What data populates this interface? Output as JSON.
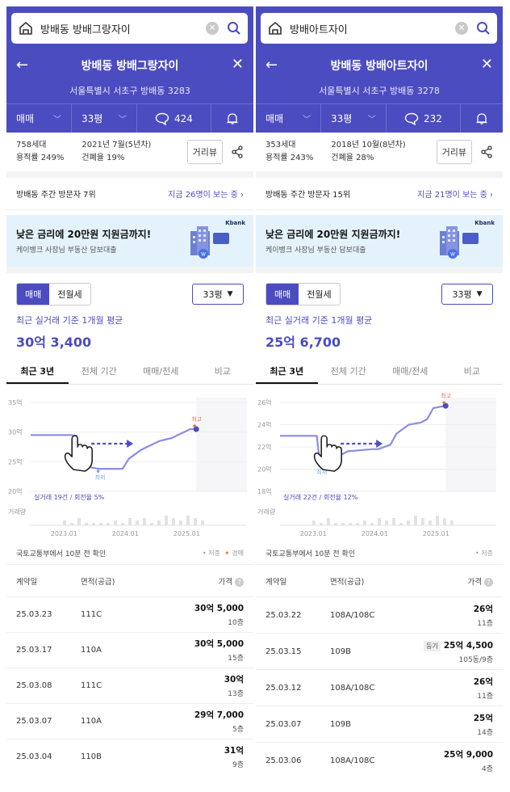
{
  "colors": {
    "brand": "#4b4cc0",
    "avg_line": "#8b8de2",
    "max_marker": "#e8704a",
    "min_marker": "#6ea7e8"
  },
  "panels": [
    {
      "search": {
        "query": "방배동 방배그랑자이"
      },
      "title": "방배동 방배그랑자이",
      "address": "서울특별시 서초구 방배동 3283",
      "tabs": {
        "trade": "매매",
        "size": "33평",
        "comments": "424"
      },
      "info": {
        "households": "758세대",
        "floor_area": "용적률 249%",
        "built": "2021년 7월(5년차)",
        "coverage": "건폐율 19%",
        "distance_btn": "거리뷰"
      },
      "visit": {
        "rank": "방배동 주간 방문자 7위",
        "now": "지금 26명이 보는 중 ›"
      },
      "banner": {
        "title": "낮은 금리에 20만원 지원금까지!",
        "sub": "케이뱅크 사장님 부동산 담보대출",
        "brand": "Kbank"
      },
      "toggle": {
        "trade": "매매",
        "rent": "전월세",
        "size": "33평"
      },
      "avg": {
        "label": "최근 실거래 기준 1개월 평균",
        "value": "30억 3,400"
      },
      "period_tabs": [
        "최근 3년",
        "전체 기간",
        "매매/전세",
        "비교"
      ],
      "chart_data": {
        "type": "line",
        "y_ticks": [
          "35억",
          "30억",
          "25억",
          "20억"
        ],
        "ylim": [
          20,
          35
        ],
        "x_ticks": [
          "2023.01",
          "2024.01",
          "2025.01"
        ],
        "xlim": [
          2022.5,
          2025.5
        ],
        "x": [
          2022.5,
          2023.15,
          2023.25,
          2023.3,
          2023.5,
          2023.6,
          2024.0,
          2024.1,
          2024.3,
          2024.5,
          2024.6,
          2024.8,
          2024.9,
          2025.0,
          2025.1,
          2025.2
        ],
        "values": [
          29.5,
          29.5,
          29.4,
          24.5,
          24.0,
          23.8,
          23.8,
          25.5,
          27.0,
          28.0,
          28.5,
          29.0,
          29.5,
          30.0,
          30.5,
          30.5
        ],
        "max_label": "최고",
        "min_label": "최저",
        "count_label": "실거래 19건 / 회전율 5%",
        "volume_label": "거래량"
      },
      "source": {
        "text": "국토교통부에서 10분 전 확인",
        "legend": [
          "저층",
          "경매"
        ]
      },
      "table": {
        "headers": [
          "계약일",
          "면적(공급)",
          "가격"
        ],
        "rows": [
          {
            "date": "25.03.23",
            "area": "111C",
            "price": "30억 5,000",
            "floor": "10층",
            "tag": ""
          },
          {
            "date": "25.03.17",
            "area": "110A",
            "price": "30억 5,000",
            "floor": "15층",
            "tag": ""
          },
          {
            "date": "25.03.08",
            "area": "111C",
            "price": "30억",
            "floor": "13층",
            "tag": ""
          },
          {
            "date": "25.03.07",
            "area": "110A",
            "price": "29억 7,000",
            "floor": "5층",
            "tag": ""
          },
          {
            "date": "25.03.04",
            "area": "110B",
            "price": "31억",
            "floor": "9층",
            "tag": ""
          }
        ]
      }
    },
    {
      "search": {
        "query": "방배아트자이"
      },
      "title": "방배동 방배아트자이",
      "address": "서울특별시 서초구 방배동 3278",
      "tabs": {
        "trade": "매매",
        "size": "33평",
        "comments": "232"
      },
      "info": {
        "households": "353세대",
        "floor_area": "용적률 243%",
        "built": "2018년 10월(8년차)",
        "coverage": "건폐율 28%",
        "distance_btn": "거리뷰"
      },
      "visit": {
        "rank": "방배동 주간 방문자 15위",
        "now": "지금 21명이 보는 중 ›"
      },
      "banner": {
        "title": "낮은 금리에 20만원 지원금까지!",
        "sub": "케이뱅크 사장님 부동산 담보대출",
        "brand": "Kbank"
      },
      "toggle": {
        "trade": "매매",
        "rent": "전월세",
        "size": "33평"
      },
      "avg": {
        "label": "최근 실거래 기준 1개월 평균",
        "value": "25억 6,700"
      },
      "period_tabs": [
        "최근 3년",
        "전체 기간",
        "매매/전세",
        "비교"
      ],
      "chart_data": {
        "type": "line",
        "y_ticks": [
          "26억",
          "24억",
          "22억",
          "20억",
          "18억"
        ],
        "ylim": [
          18,
          26
        ],
        "x_ticks": [
          "2023.01",
          "2024.01",
          "2025.01"
        ],
        "xlim": [
          2022.5,
          2025.5
        ],
        "x": [
          2022.5,
          2023.1,
          2023.15,
          2023.2,
          2023.5,
          2023.6,
          2024.0,
          2024.1,
          2024.3,
          2024.4,
          2024.6,
          2024.8,
          2024.9,
          2025.0,
          2025.1,
          2025.2
        ],
        "values": [
          23.0,
          23.0,
          20.5,
          20.7,
          21.3,
          21.6,
          21.8,
          21.8,
          22.2,
          23.2,
          24.0,
          24.2,
          24.5,
          25.5,
          25.6,
          25.7
        ],
        "max_label": "최고",
        "min_label": "최저",
        "count_label": "실거래 22건 / 회전율 12%",
        "volume_label": "거래량"
      },
      "source": {
        "text": "국토교통부에서 10분 전 확인",
        "legend": [
          "저층"
        ]
      },
      "table": {
        "headers": [
          "계약일",
          "면적(공급)",
          "가격"
        ],
        "rows": [
          {
            "date": "25.03.22",
            "area": "108A/108C",
            "price": "26억",
            "floor": "11층",
            "tag": ""
          },
          {
            "date": "25.03.15",
            "area": "109B",
            "price": "25억 4,500",
            "floor": "105동/9층",
            "tag": "등기"
          },
          {
            "date": "25.03.12",
            "area": "108A/108C",
            "price": "26억",
            "floor": "11층",
            "tag": ""
          },
          {
            "date": "25.03.07",
            "area": "109B",
            "price": "25억",
            "floor": "14층",
            "tag": ""
          },
          {
            "date": "25.03.06",
            "area": "108A/108C",
            "price": "25억 9,000",
            "floor": "4층",
            "tag": ""
          }
        ]
      }
    }
  ]
}
